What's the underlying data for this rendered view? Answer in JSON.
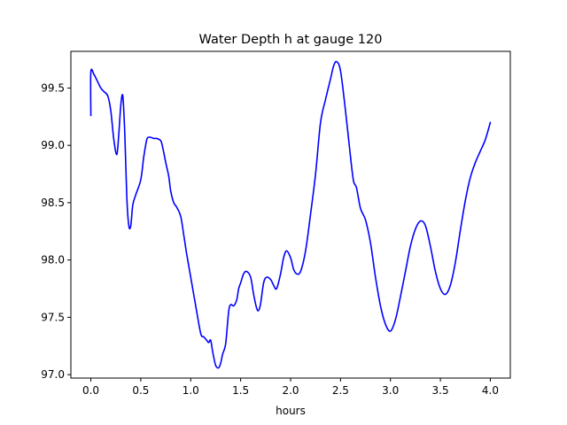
{
  "chart_data": {
    "type": "line",
    "title": "Water Depth h at gauge 120",
    "xlabel": "hours",
    "ylabel": "",
    "xlim": [
      -0.2,
      4.2
    ],
    "ylim": [
      96.97,
      99.82
    ],
    "xticks": [
      0.0,
      0.5,
      1.0,
      1.5,
      2.0,
      2.5,
      3.0,
      3.5,
      4.0
    ],
    "xtick_labels": [
      "0.0",
      "0.5",
      "1.0",
      "1.5",
      "2.0",
      "2.5",
      "3.0",
      "3.5",
      "4.0"
    ],
    "yticks": [
      97.0,
      97.5,
      98.0,
      98.5,
      99.0,
      99.5
    ],
    "ytick_labels": [
      "97.0",
      "97.5",
      "98.0",
      "98.5",
      "99.0",
      "99.5"
    ],
    "grid": false,
    "series": [
      {
        "color": "#0000ff",
        "x": [
          0.0,
          0.0,
          0.03,
          0.06,
          0.1,
          0.13,
          0.17,
          0.2,
          0.23,
          0.26,
          0.28,
          0.3,
          0.32,
          0.34,
          0.36,
          0.38,
          0.4,
          0.42,
          0.45,
          0.5,
          0.53,
          0.56,
          0.58,
          0.6,
          0.63,
          0.66,
          0.7,
          0.72,
          0.75,
          0.78,
          0.8,
          0.83,
          0.86,
          0.9,
          0.93,
          0.96,
          1.0,
          1.05,
          1.1,
          1.13,
          1.16,
          1.18,
          1.2,
          1.22,
          1.25,
          1.28,
          1.3,
          1.32,
          1.35,
          1.38,
          1.4,
          1.43,
          1.46,
          1.48,
          1.5,
          1.53,
          1.56,
          1.6,
          1.63,
          1.66,
          1.68,
          1.7,
          1.73,
          1.76,
          1.8,
          1.83,
          1.86,
          1.9,
          1.93,
          1.96,
          2.0,
          2.03,
          2.06,
          2.1,
          2.15,
          2.2,
          2.25,
          2.3,
          2.35,
          2.4,
          2.43,
          2.46,
          2.5,
          2.55,
          2.6,
          2.63,
          2.66,
          2.7,
          2.75,
          2.8,
          2.85,
          2.9,
          2.95,
          3.0,
          3.05,
          3.1,
          3.15,
          3.2,
          3.25,
          3.3,
          3.35,
          3.4,
          3.45,
          3.5,
          3.55,
          3.6,
          3.65,
          3.7,
          3.75,
          3.8,
          3.85,
          3.9,
          3.95,
          4.0
        ],
        "y": [
          99.26,
          99.64,
          99.62,
          99.57,
          99.5,
          99.47,
          99.43,
          99.3,
          99.05,
          98.92,
          99.1,
          99.35,
          99.43,
          99.1,
          98.55,
          98.3,
          98.3,
          98.48,
          98.57,
          98.7,
          98.9,
          99.05,
          99.07,
          99.07,
          99.06,
          99.06,
          99.04,
          98.98,
          98.85,
          98.73,
          98.6,
          98.5,
          98.46,
          98.38,
          98.22,
          98.05,
          97.85,
          97.6,
          97.36,
          97.33,
          97.3,
          97.28,
          97.3,
          97.2,
          97.08,
          97.06,
          97.1,
          97.18,
          97.27,
          97.55,
          97.61,
          97.6,
          97.65,
          97.75,
          97.8,
          97.88,
          97.9,
          97.85,
          97.7,
          97.58,
          97.56,
          97.62,
          97.8,
          97.85,
          97.83,
          97.78,
          97.75,
          97.88,
          98.02,
          98.08,
          98.02,
          97.92,
          97.88,
          97.9,
          98.08,
          98.4,
          98.75,
          99.2,
          99.4,
          99.58,
          99.69,
          99.73,
          99.65,
          99.3,
          98.9,
          98.69,
          98.63,
          98.45,
          98.35,
          98.15,
          97.85,
          97.6,
          97.44,
          97.38,
          97.48,
          97.68,
          97.9,
          98.12,
          98.27,
          98.34,
          98.3,
          98.12,
          97.9,
          97.75,
          97.7,
          97.78,
          97.98,
          98.26,
          98.52,
          98.72,
          98.85,
          98.95,
          99.05,
          99.2
        ]
      }
    ]
  }
}
